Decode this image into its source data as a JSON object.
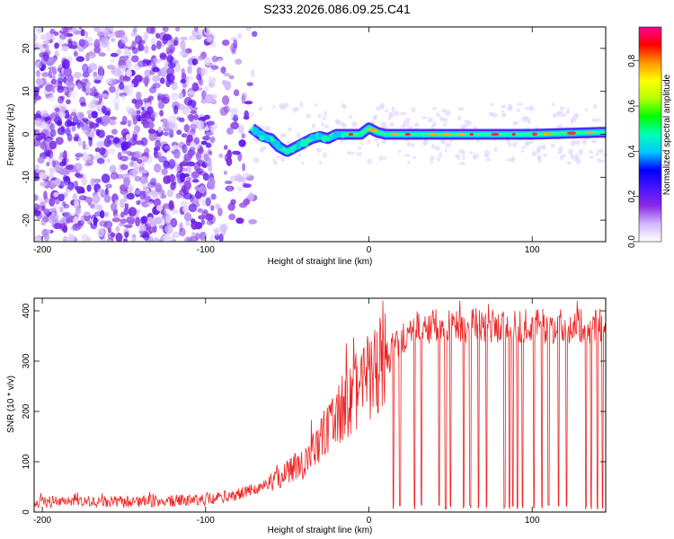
{
  "title": "S233.2026.086.09.25.C41",
  "chart_data": [
    {
      "type": "heatmap",
      "name": "spectrogram",
      "xlabel": "Height of straight line (km)",
      "ylabel": "Frequency (Hz)",
      "xlim": [
        -205,
        145
      ],
      "ylim": [
        -25,
        25
      ],
      "xticks": [
        -200,
        -100,
        0,
        100
      ],
      "yticks": [
        -20,
        -10,
        0,
        10,
        20
      ],
      "colorbar": {
        "label": "Normalized spectral amplitude",
        "range": [
          0,
          0.95
        ],
        "ticks": [
          0.0,
          0.2,
          0.4,
          0.6,
          0.8
        ],
        "colors": [
          "#ffffff",
          "#d2b8ff",
          "#8c28e6",
          "#4614ff",
          "#0000ff",
          "#00c8ff",
          "#00ffb4",
          "#00ff00",
          "#b4ff00",
          "#ffff00",
          "#ff9600",
          "#ff0000",
          "#ff0096"
        ]
      },
      "signal_trace": {
        "x": [
          -72,
          -65,
          -60,
          -55,
          -50,
          -45,
          -40,
          -35,
          -30,
          -25,
          -20,
          -15,
          -10,
          -5,
          0,
          5,
          10,
          30,
          60,
          100,
          145
        ],
        "y": [
          1.5,
          -0.5,
          -1,
          -3,
          -4,
          -3,
          -2,
          -1,
          -0.5,
          -1,
          0,
          0,
          0,
          0,
          1.5,
          0.5,
          0,
          0,
          0,
          0,
          0.5
        ]
      }
    },
    {
      "type": "line",
      "name": "snr",
      "xlabel": "Height of straight line (km)",
      "ylabel": "SNR (10 * v/v)",
      "xlim": [
        -205,
        145
      ],
      "ylim": [
        0,
        425
      ],
      "xticks": [
        -200,
        -100,
        0,
        100
      ],
      "yticks": [
        0,
        100,
        200,
        300,
        400
      ],
      "color": "#ee2222",
      "series": [
        {
          "name": "SNR",
          "x": [
            -205,
            -180,
            -150,
            -120,
            -100,
            -90,
            -80,
            -70,
            -60,
            -50,
            -40,
            -30,
            -20,
            -15,
            -10,
            -5,
            0,
            5,
            10,
            15,
            20,
            25,
            30,
            40,
            60,
            80,
            100,
            120,
            145
          ],
          "values": [
            20,
            20,
            20,
            22,
            25,
            30,
            35,
            45,
            60,
            80,
            100,
            140,
            185,
            210,
            230,
            250,
            265,
            280,
            300,
            320,
            345,
            360,
            365,
            370,
            370,
            370,
            370,
            370,
            370
          ]
        }
      ],
      "dropout_x": [
        15,
        19,
        28,
        32,
        43,
        47,
        50,
        58,
        62,
        67,
        72,
        83,
        86,
        88,
        91,
        94,
        101,
        106,
        110,
        116,
        121,
        133,
        136,
        140,
        143
      ]
    }
  ]
}
